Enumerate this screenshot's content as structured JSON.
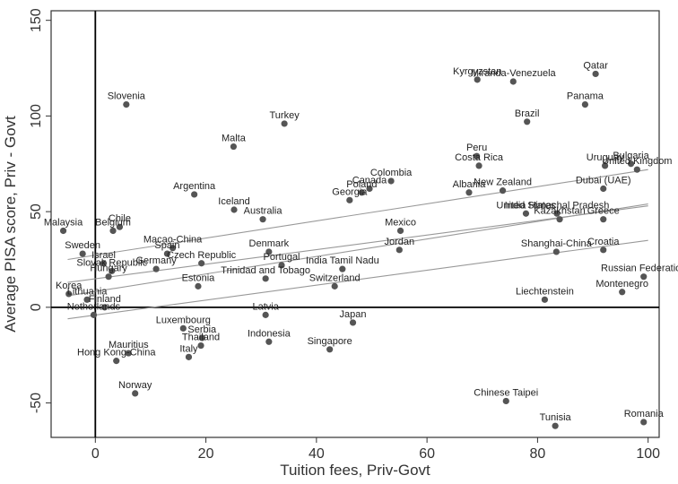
{
  "chart_data": {
    "type": "scatter",
    "xlabel": "Tuition fees, Priv-Govt",
    "ylabel": "Average PISA score, Priv - Govt",
    "xlim": [
      -8,
      102
    ],
    "ylim": [
      -68,
      155
    ],
    "xticks": [
      0,
      20,
      40,
      60,
      80,
      100
    ],
    "yticks": [
      -50,
      0,
      50,
      100,
      150
    ],
    "grid": false,
    "reference_lines": {
      "x": 0,
      "y": 0
    },
    "colors": {
      "points": "#555555",
      "fit": "#999999",
      "axes": "#000000"
    },
    "points": [
      {
        "label": "Slovenia",
        "x": 5.6,
        "y": 106
      },
      {
        "label": "Malaysia",
        "x": -5.8,
        "y": 40
      },
      {
        "label": "Belgium",
        "x": 3.2,
        "y": 40
      },
      {
        "label": "Chile",
        "x": 4.4,
        "y": 42
      },
      {
        "label": "Sweden",
        "x": -2.3,
        "y": 28
      },
      {
        "label": "Israel",
        "x": 1.5,
        "y": 23
      },
      {
        "label": "Slovak Republic",
        "x": 3.0,
        "y": 19
      },
      {
        "label": "Hungary",
        "x": 2.4,
        "y": 16
      },
      {
        "label": "Korea",
        "x": -4.8,
        "y": 7
      },
      {
        "label": "Lithuania",
        "x": -1.5,
        "y": 4
      },
      {
        "label": "Finland",
        "x": 1.7,
        "y": 0
      },
      {
        "label": "Netherlands",
        "x": -0.3,
        "y": -4
      },
      {
        "label": "Germany",
        "x": 11.0,
        "y": 20
      },
      {
        "label": "Macao-China",
        "x": 14.0,
        "y": 31
      },
      {
        "label": "Spain",
        "x": 13.0,
        "y": 28
      },
      {
        "label": "Czech Republic",
        "x": 19.2,
        "y": 23
      },
      {
        "label": "Argentina",
        "x": 17.9,
        "y": 59
      },
      {
        "label": "Malta",
        "x": 25.0,
        "y": 84
      },
      {
        "label": "Iceland",
        "x": 25.1,
        "y": 51
      },
      {
        "label": "Australia",
        "x": 30.3,
        "y": 46
      },
      {
        "label": "Estonia",
        "x": 18.6,
        "y": 11
      },
      {
        "label": "Luxembourg",
        "x": 15.9,
        "y": -11
      },
      {
        "label": "Serbia",
        "x": 19.3,
        "y": -16
      },
      {
        "label": "Thailand",
        "x": 19.1,
        "y": -20
      },
      {
        "label": "Hong Kong-China",
        "x": 3.8,
        "y": -28
      },
      {
        "label": "Mauritius",
        "x": 6.0,
        "y": -24
      },
      {
        "label": "Italy",
        "x": 16.9,
        "y": -26
      },
      {
        "label": "Norway",
        "x": 7.2,
        "y": -45
      },
      {
        "label": "Turkey",
        "x": 34.2,
        "y": 96
      },
      {
        "label": "Denmark",
        "x": 31.4,
        "y": 29
      },
      {
        "label": "Portugal",
        "x": 33.7,
        "y": 22
      },
      {
        "label": "Trinidad and Tobago",
        "x": 30.8,
        "y": 15
      },
      {
        "label": "Latvia",
        "x": 30.8,
        "y": -4
      },
      {
        "label": "Indonesia",
        "x": 31.4,
        "y": -18
      },
      {
        "label": "Georgia",
        "x": 46.0,
        "y": 56
      },
      {
        "label": "Poland",
        "x": 48.2,
        "y": 60
      },
      {
        "label": "Canada",
        "x": 49.6,
        "y": 62
      },
      {
        "label": "Colombia",
        "x": 53.5,
        "y": 66
      },
      {
        "label": "India Tamil Nadu",
        "x": 44.7,
        "y": 20
      },
      {
        "label": "Switzerland",
        "x": 43.3,
        "y": 11
      },
      {
        "label": "Japan",
        "x": 46.6,
        "y": -8
      },
      {
        "label": "Singapore",
        "x": 42.4,
        "y": -22
      },
      {
        "label": "Mexico",
        "x": 55.2,
        "y": 40
      },
      {
        "label": "Jordan",
        "x": 55.0,
        "y": 30
      },
      {
        "label": "Kyrgyzstan",
        "x": 69.1,
        "y": 119
      },
      {
        "label": "Miranda-Venezuela",
        "x": 75.6,
        "y": 118
      },
      {
        "label": "Qatar",
        "x": 90.5,
        "y": 122
      },
      {
        "label": "Panama",
        "x": 88.6,
        "y": 106
      },
      {
        "label": "Brazil",
        "x": 78.1,
        "y": 97
      },
      {
        "label": "Peru",
        "x": 69.0,
        "y": 79
      },
      {
        "label": "Costa Rica",
        "x": 69.4,
        "y": 74
      },
      {
        "label": "Albania",
        "x": 67.6,
        "y": 60
      },
      {
        "label": "New Zealand",
        "x": 73.7,
        "y": 61
      },
      {
        "label": "United States",
        "x": 77.9,
        "y": 49
      },
      {
        "label": "India Himachal Pradesh",
        "x": 83.5,
        "y": 49
      },
      {
        "label": "Kazakhstan",
        "x": 84.0,
        "y": 46
      },
      {
        "label": "Greece",
        "x": 91.9,
        "y": 46
      },
      {
        "label": "Uruguay",
        "x": 92.2,
        "y": 74
      },
      {
        "label": "Bulgaria",
        "x": 96.9,
        "y": 75
      },
      {
        "label": "United Kingdom",
        "x": 98.0,
        "y": 72
      },
      {
        "label": "Dubai (UAE)",
        "x": 91.9,
        "y": 62
      },
      {
        "label": "Shanghai-China",
        "x": 83.4,
        "y": 29
      },
      {
        "label": "Croatia",
        "x": 91.9,
        "y": 30
      },
      {
        "label": "Russian Federation",
        "x": 99.2,
        "y": 16
      },
      {
        "label": "Montenegro",
        "x": 95.3,
        "y": 8
      },
      {
        "label": "Liechtenstein",
        "x": 81.3,
        "y": 4
      },
      {
        "label": "Chinese Taipei",
        "x": 74.3,
        "y": -49
      },
      {
        "label": "Tunisia",
        "x": 83.2,
        "y": -62
      },
      {
        "label": "Romania",
        "x": 99.2,
        "y": -60
      }
    ],
    "fit_lines": [
      {
        "x": [
          -5,
          100
        ],
        "y": [
          25,
          72
        ]
      },
      {
        "x": [
          -5,
          100
        ],
        "y": [
          6,
          54
        ]
      },
      {
        "x": [
          -5,
          100
        ],
        "y": [
          -6,
          35
        ]
      },
      {
        "x": [
          -5,
          100
        ],
        "y": [
          13,
          53
        ]
      }
    ]
  }
}
